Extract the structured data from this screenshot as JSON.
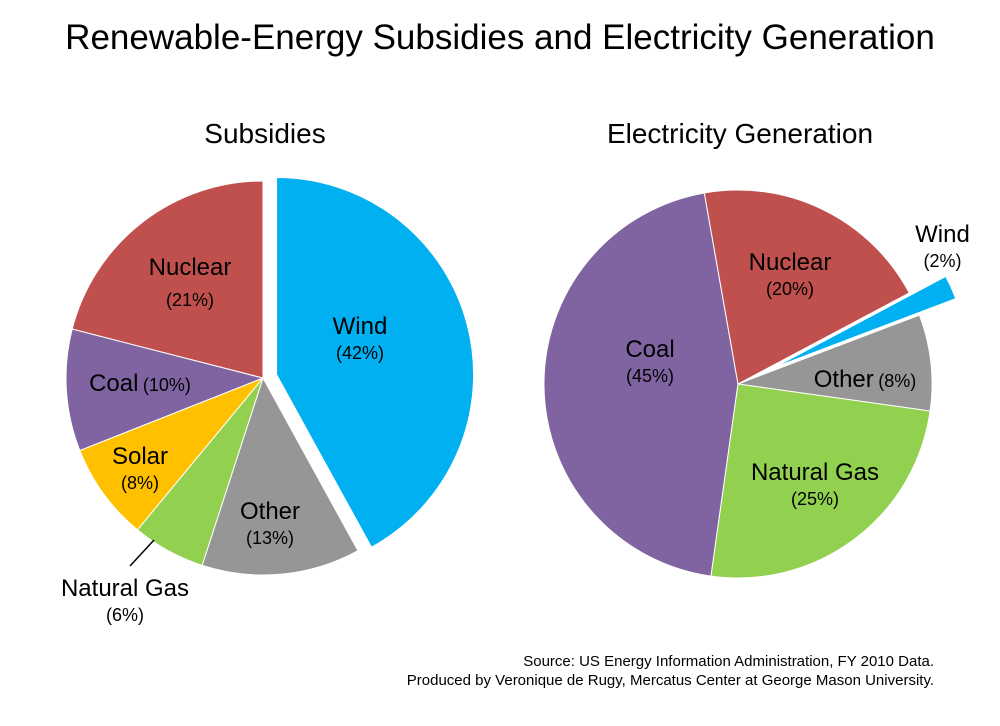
{
  "title": "Renewable-Energy Subsidies and Electricity Generation",
  "chart_data": [
    {
      "type": "pie",
      "title": "Subsidies",
      "slices": [
        {
          "label": "Wind",
          "value": 42,
          "pct_label": "(42%)",
          "color": "#00b0f0",
          "exploded": true
        },
        {
          "label": "Other",
          "value": 13,
          "pct_label": "(13%)",
          "color": "#969696"
        },
        {
          "label": "Natural Gas",
          "value": 6,
          "pct_label": "(6%)",
          "color": "#92d050"
        },
        {
          "label": "Solar",
          "value": 8,
          "pct_label": "(8%)",
          "color": "#ffc000"
        },
        {
          "label": "Coal",
          "value": 10,
          "pct_label": "(10%)",
          "color": "#8064a2"
        },
        {
          "label": "Nuclear",
          "value": 21,
          "pct_label": "(21%)",
          "color": "#c0504d"
        }
      ]
    },
    {
      "type": "pie",
      "title": "Electricity Generation",
      "slices": [
        {
          "label": "Coal",
          "value": 45,
          "pct_label": "(45%)",
          "color": "#8064a2"
        },
        {
          "label": "Nuclear",
          "value": 20,
          "pct_label": "(20%)",
          "color": "#c0504d"
        },
        {
          "label": "Wind",
          "value": 2,
          "pct_label": "(2%)",
          "color": "#00b0f0",
          "exploded": true
        },
        {
          "label": "Other",
          "value": 8,
          "pct_label": "(8%)",
          "color": "#969696"
        },
        {
          "label": "Natural Gas",
          "value": 25,
          "pct_label": "(25%)",
          "color": "#92d050"
        }
      ]
    }
  ],
  "source": {
    "line1": "Source:  US Energy Information Administration, FY 2010 Data.",
    "line2": "Produced by Veronique de Rugy, Mercatus Center at George Mason University."
  }
}
